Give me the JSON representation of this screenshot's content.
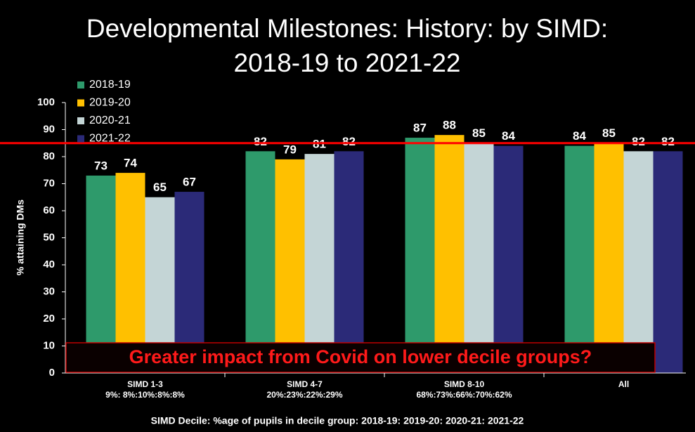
{
  "chart_data": {
    "type": "bar",
    "title": [
      "Developmental Milestones: History: by SIMD:",
      "2018-19 to 2021-22"
    ],
    "y_label": "% attaining DMs",
    "categories": [
      "SIMD 1-3",
      "SIMD 4-7",
      "SIMD 8-10",
      "All"
    ],
    "category_sublabels": [
      "9%: 8%:10%:8%:8%",
      "20%:23%:22%:29%",
      "68%:73%:66%:70%:62%",
      null
    ],
    "series": [
      {
        "name": "2018-19",
        "color": "#2e9a6b",
        "values": [
          73,
          82,
          87,
          84
        ]
      },
      {
        "name": "2019-20",
        "color": "#ffc000",
        "values": [
          74,
          79,
          88,
          85
        ]
      },
      {
        "name": "2020-21",
        "color": "#c4d5d6",
        "values": [
          65,
          81,
          85,
          82
        ]
      },
      {
        "name": "2021-22",
        "color": "#2b2a78",
        "values": [
          67,
          82,
          84,
          82
        ]
      }
    ],
    "ylim": [
      0,
      100
    ],
    "yticks": [
      0,
      10,
      20,
      30,
      40,
      50,
      60,
      70,
      80,
      90,
      100
    ],
    "reference_line": {
      "value": 85,
      "color": "#ff0000"
    },
    "annotation": "Greater impact from Covid on lower decile groups?",
    "footnote": "SIMD Decile: %age of pupils in decile group: 2018-19: 2019-20: 2020-21: 2021-22",
    "legend": "top-left"
  }
}
